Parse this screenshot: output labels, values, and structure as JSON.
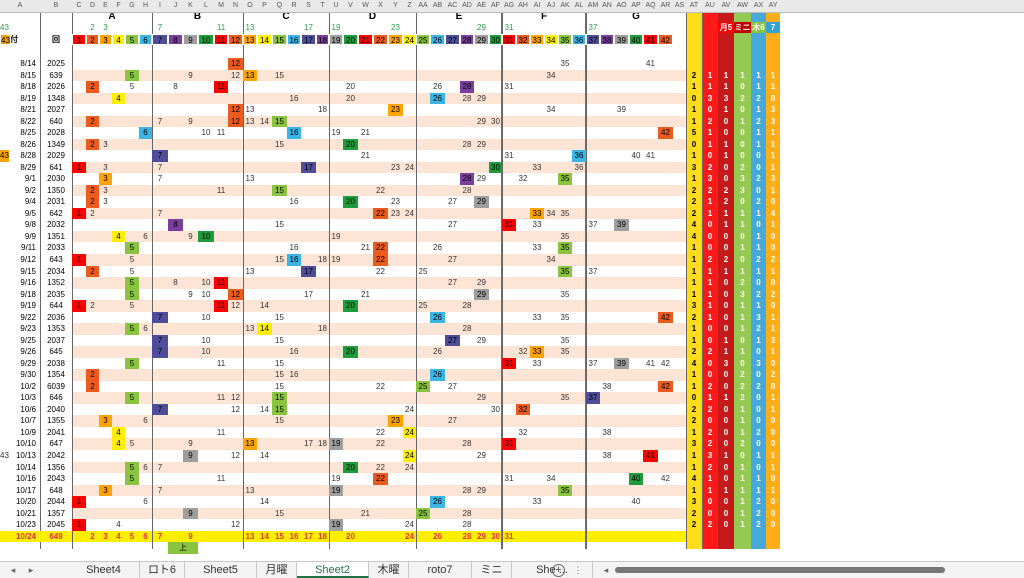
{
  "columns": [
    "A",
    "B",
    "C",
    "D",
    "E",
    "F",
    "G",
    "H",
    "I",
    "J",
    "K",
    "L",
    "M",
    "N",
    "O",
    "P",
    "Q",
    "R",
    "S",
    "T",
    "U",
    "V",
    "W",
    "X",
    "Y",
    "Z",
    "AA",
    "AB",
    "AC",
    "AD",
    "AE",
    "AF",
    "AG",
    "AH",
    "AI",
    "AJ",
    "AK",
    "AL",
    "AM",
    "AN",
    "AO",
    "AP",
    "AQ",
    "AR",
    "AS",
    "AT",
    "AU",
    "AV",
    "AW",
    "AX",
    "AY"
  ],
  "groups": [
    "A",
    "B",
    "C",
    "D",
    "E",
    "F",
    "G"
  ],
  "top_numbers": [
    [
      "2",
      "3"
    ],
    [
      "7",
      "11"
    ],
    [
      "13",
      "17"
    ],
    [
      "19",
      "23"
    ],
    [
      "29"
    ],
    [
      "31",
      "37"
    ],
    [
      "43"
    ]
  ],
  "header": {
    "date": "日付",
    "issue": "回",
    "stats": [
      "月5",
      "ミニ",
      "木6",
      "7"
    ]
  },
  "stat_colors": [
    "#ffd800",
    "#ff0000",
    "#c00000",
    "#8ac43f",
    "#33a0d6",
    "#ffa500"
  ],
  "rows": [
    {
      "date": "8/14",
      "n": "2025",
      "nums": [
        12,
        35,
        41
      ],
      "st": [
        "",
        "",
        "",
        "",
        "",
        ""
      ]
    },
    {
      "date": "8/15",
      "n": "639",
      "nums": [
        5,
        9,
        12,
        13,
        15,
        34
      ],
      "st": [
        "2",
        "1",
        "1",
        "1",
        "1",
        "1"
      ]
    },
    {
      "date": "8/18",
      "n": "2026",
      "nums": [
        2,
        5,
        8,
        11,
        20,
        26,
        28,
        31
      ],
      "st": [
        "1",
        "1",
        "1",
        "0",
        "1",
        "1"
      ]
    },
    {
      "date": "8/19",
      "n": "1348",
      "nums": [
        4,
        16,
        20,
        26,
        28,
        29
      ],
      "st": [
        "0",
        "3",
        "3",
        "2",
        "2",
        "0"
      ]
    },
    {
      "date": "8/21",
      "n": "2027",
      "nums": [
        12,
        13,
        18,
        23,
        34,
        39
      ],
      "st": [
        "1",
        "0",
        "1",
        "0",
        "1",
        "3"
      ]
    },
    {
      "date": "8/22",
      "n": "640",
      "nums": [
        2,
        7,
        9,
        12,
        13,
        14,
        15,
        29,
        30
      ],
      "st": [
        "1",
        "2",
        "0",
        "1",
        "2",
        "3"
      ]
    },
    {
      "date": "8/25",
      "n": "2028",
      "nums": [
        6,
        10,
        11,
        16,
        19,
        21,
        42
      ],
      "st": [
        "5",
        "1",
        "0",
        "0",
        "1",
        "1"
      ]
    },
    {
      "date": "8/26",
      "n": "1349",
      "nums": [
        2,
        3,
        15,
        20,
        28,
        29
      ],
      "st": [
        "0",
        "1",
        "1",
        "0",
        "1",
        "1"
      ]
    },
    {
      "date": "8/28",
      "n": "2029",
      "nums": [
        7,
        21,
        31,
        36,
        40,
        41,
        43
      ],
      "st": [
        "1",
        "0",
        "1",
        "0",
        "0",
        "1"
      ]
    },
    {
      "date": "8/29",
      "n": "641",
      "nums": [
        1,
        3,
        7,
        17,
        23,
        24,
        30,
        33,
        36
      ],
      "st": [
        "3",
        "2",
        "0",
        "2",
        "0",
        "1"
      ]
    },
    {
      "date": "9/1",
      "n": "2030",
      "nums": [
        3,
        7,
        13,
        28,
        29,
        32,
        35
      ],
      "st": [
        "1",
        "3",
        "0",
        "3",
        "2",
        "3"
      ]
    },
    {
      "date": "9/2",
      "n": "1350",
      "nums": [
        2,
        3,
        11,
        15,
        22,
        28
      ],
      "st": [
        "2",
        "2",
        "2",
        "3",
        "0",
        "1"
      ]
    },
    {
      "date": "9/4",
      "n": "2031",
      "nums": [
        2,
        3,
        16,
        20,
        23,
        27,
        29
      ],
      "st": [
        "2",
        "1",
        "2",
        "0",
        "2",
        "0"
      ]
    },
    {
      "date": "9/5",
      "n": "642",
      "nums": [
        1,
        2,
        7,
        22,
        23,
        24,
        33,
        34,
        35
      ],
      "st": [
        "2",
        "1",
        "1",
        "1",
        "1",
        "4"
      ]
    },
    {
      "date": "9/8",
      "n": "2032",
      "nums": [
        8,
        15,
        27,
        31,
        33,
        37,
        39
      ],
      "st": [
        "4",
        "0",
        "1",
        "1",
        "0",
        "1"
      ]
    },
    {
      "date": "9/9",
      "n": "1351",
      "nums": [
        4,
        6,
        9,
        10,
        19,
        35
      ],
      "st": [
        "4",
        "0",
        "0",
        "0",
        "1",
        "0"
      ]
    },
    {
      "date": "9/11",
      "n": "2033",
      "nums": [
        5,
        16,
        21,
        22,
        26,
        33,
        35
      ],
      "st": [
        "1",
        "0",
        "0",
        "1",
        "1",
        "0"
      ]
    },
    {
      "date": "9/12",
      "n": "643",
      "nums": [
        1,
        5,
        15,
        16,
        18,
        19,
        22,
        27,
        34
      ],
      "st": [
        "1",
        "2",
        "2",
        "0",
        "2",
        "2"
      ]
    },
    {
      "date": "9/15",
      "n": "2034",
      "nums": [
        2,
        5,
        13,
        17,
        22,
        25,
        35,
        37
      ],
      "st": [
        "1",
        "1",
        "1",
        "1",
        "1",
        "1"
      ]
    },
    {
      "date": "9/16",
      "n": "1352",
      "nums": [
        5,
        8,
        10,
        11,
        27,
        29
      ],
      "st": [
        "1",
        "1",
        "0",
        "2",
        "0",
        "0"
      ]
    },
    {
      "date": "9/18",
      "n": "2035",
      "nums": [
        5,
        9,
        10,
        12,
        17,
        21,
        29,
        35
      ],
      "st": [
        "1",
        "1",
        "0",
        "3",
        "2",
        "2"
      ]
    },
    {
      "date": "9/19",
      "n": "644",
      "nums": [
        1,
        2,
        5,
        11,
        12,
        14,
        20,
        25,
        28
      ],
      "st": [
        "3",
        "1",
        "0",
        "1",
        "1",
        "0"
      ]
    },
    {
      "date": "9/22",
      "n": "2036",
      "nums": [
        7,
        10,
        15,
        26,
        33,
        35,
        42
      ],
      "st": [
        "2",
        "1",
        "0",
        "1",
        "3",
        "1"
      ]
    },
    {
      "date": "9/23",
      "n": "1353",
      "nums": [
        5,
        6,
        13,
        14,
        18,
        28
      ],
      "st": [
        "1",
        "0",
        "0",
        "1",
        "2",
        "1"
      ]
    },
    {
      "date": "9/25",
      "n": "2037",
      "nums": [
        7,
        10,
        15,
        27,
        29,
        35
      ],
      "st": [
        "1",
        "0",
        "1",
        "0",
        "1",
        "3"
      ]
    },
    {
      "date": "9/26",
      "n": "645",
      "nums": [
        7,
        10,
        16,
        20,
        26,
        32,
        33,
        35
      ],
      "st": [
        "2",
        "2",
        "1",
        "1",
        "0",
        "1"
      ]
    },
    {
      "date": "9/29",
      "n": "2038",
      "nums": [
        5,
        11,
        15,
        31,
        33,
        37,
        39,
        41,
        42
      ],
      "st": [
        "4",
        "0",
        "3",
        "0",
        "3",
        "0"
      ]
    },
    {
      "date": "9/30",
      "n": "1354",
      "nums": [
        2,
        15,
        16,
        26
      ],
      "st": [
        "1",
        "0",
        "0",
        "2",
        "0",
        "2"
      ]
    },
    {
      "date": "10/2",
      "n": "6039",
      "nums": [
        2,
        15,
        22,
        25,
        27,
        38,
        42
      ],
      "st": [
        "1",
        "2",
        "0",
        "2",
        "2",
        "0"
      ]
    },
    {
      "date": "10/3",
      "n": "646",
      "nums": [
        5,
        11,
        12,
        15,
        29,
        35,
        37
      ],
      "st": [
        "0",
        "1",
        "1",
        "2",
        "0",
        "1"
      ]
    },
    {
      "date": "10/6",
      "n": "2040",
      "nums": [
        7,
        12,
        14,
        15,
        24,
        30,
        32
      ],
      "st": [
        "2",
        "2",
        "0",
        "1",
        "0",
        "1"
      ]
    },
    {
      "date": "10/7",
      "n": "1355",
      "nums": [
        3,
        6,
        15,
        23,
        27
      ],
      "st": [
        "2",
        "0",
        "0",
        "1",
        "0",
        "0"
      ]
    },
    {
      "date": "10/9",
      "n": "2041",
      "nums": [
        4,
        11,
        22,
        24,
        32,
        38
      ],
      "st": [
        "1",
        "2",
        "0",
        "1",
        "2",
        "0"
      ]
    },
    {
      "date": "10/10",
      "n": "647",
      "nums": [
        4,
        5,
        9,
        13,
        17,
        18,
        19,
        22,
        28,
        31
      ],
      "st": [
        "3",
        "2",
        "0",
        "2",
        "0",
        "0"
      ]
    },
    {
      "date": "10/13",
      "n": "2042",
      "nums": [
        9,
        12,
        14,
        24,
        29,
        38,
        41,
        43
      ],
      "st": [
        "1",
        "3",
        "1",
        "0",
        "1",
        "1"
      ]
    },
    {
      "date": "10/14",
      "n": "1356",
      "nums": [
        5,
        6,
        7,
        20,
        22,
        24
      ],
      "st": [
        "1",
        "2",
        "0",
        "1",
        "0",
        "1"
      ]
    },
    {
      "date": "10/16",
      "n": "2043",
      "nums": [
        5,
        11,
        19,
        22,
        31,
        34,
        40,
        42
      ],
      "st": [
        "4",
        "1",
        "0",
        "1",
        "1",
        "0"
      ]
    },
    {
      "date": "10/17",
      "n": "648",
      "nums": [
        3,
        7,
        13,
        19,
        28,
        29,
        35
      ],
      "st": [
        "1",
        "1",
        "1",
        "1",
        "1",
        "1"
      ]
    },
    {
      "date": "10/20",
      "n": "2044",
      "nums": [
        1,
        6,
        14,
        26,
        33,
        40
      ],
      "st": [
        "3",
        "0",
        "0",
        "1",
        "2",
        "0"
      ]
    },
    {
      "date": "10/21",
      "n": "1357",
      "nums": [
        9,
        15,
        21,
        25,
        28
      ],
      "st": [
        "2",
        "0",
        "0",
        "1",
        "2",
        "0"
      ]
    },
    {
      "date": "10/23",
      "n": "2045",
      "nums": [
        1,
        4,
        12,
        19,
        24,
        28
      ],
      "st": [
        "2",
        "2",
        "0",
        "1",
        "2",
        "0"
      ]
    },
    {
      "date": "10/24",
      "n": "649",
      "nums": [
        2,
        3,
        4,
        5,
        6,
        7,
        9,
        13,
        14,
        15,
        16,
        17,
        18,
        20,
        24,
        26,
        28,
        29,
        30,
        31
      ],
      "st": [
        "",
        "",
        "",
        "",
        "",
        ""
      ]
    }
  ],
  "footer_note": "上",
  "tabs": [
    "Sheet4",
    "ロト6",
    "Sheet5",
    "月曜",
    "Sheet2",
    "木曜",
    "roto7",
    "ミニ",
    "She ..."
  ],
  "active_tab": "Sheet2"
}
